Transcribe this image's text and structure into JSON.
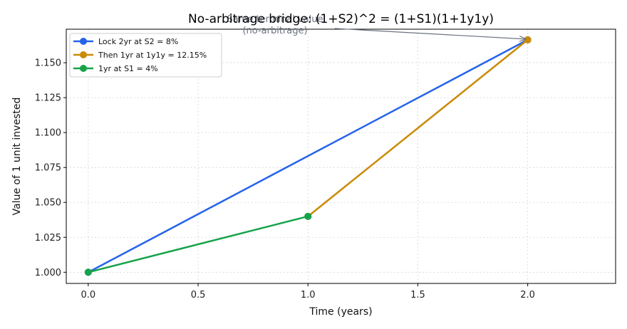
{
  "chart_data": {
    "type": "line",
    "title": "No-arbitrage bridge: (1+S2)^2 = (1+S1)(1+1y1y)",
    "xlabel": "Time (years)",
    "ylabel": "Value of 1 unit invested",
    "xlim": [
      -0.1,
      2.4
    ],
    "ylim": [
      0.992,
      1.174
    ],
    "x_ticks": [
      0.0,
      0.5,
      1.0,
      1.5,
      2.0
    ],
    "x_tick_labels": [
      "0.0",
      "0.5",
      "1.0",
      "1.5",
      "2.0"
    ],
    "y_ticks": [
      1.0,
      1.025,
      1.05,
      1.075,
      1.1,
      1.125,
      1.15
    ],
    "y_tick_labels": [
      "1.000",
      "1.025",
      "1.050",
      "1.075",
      "1.100",
      "1.125",
      "1.150"
    ],
    "grid": true,
    "legend_position": "top-left",
    "series": [
      {
        "name": "Lock 2yr at S2 = 8%",
        "color": "#2563eb",
        "x": [
          0,
          2
        ],
        "y": [
          1.0,
          1.1664
        ]
      },
      {
        "name": "Then 1yr at 1y1y = 12.15%",
        "color": "#ca8a04",
        "x": [
          1,
          2
        ],
        "y": [
          1.04,
          1.1664
        ]
      },
      {
        "name": "1yr at S1 = 4%",
        "color": "#16a34a",
        "x": [
          0,
          1
        ],
        "y": [
          1.0,
          1.04
        ]
      }
    ],
    "annotation": {
      "lines": [
        "Same terminal value",
        "(no-arbitrage)"
      ],
      "target": {
        "x": 2,
        "y": 1.1664
      }
    }
  }
}
